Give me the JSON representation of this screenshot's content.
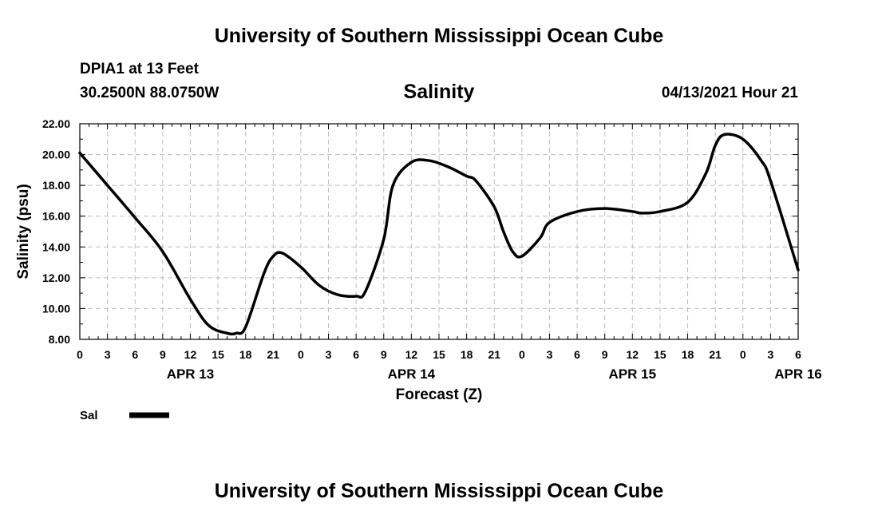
{
  "header": {
    "title": "University of Southern Mississippi Ocean Cube",
    "station": "DPIA1 at 13 Feet",
    "coords": "30.2500N  88.0750W",
    "variable": "Salinity",
    "datetime": "04/13/2021 Hour 21"
  },
  "footer": {
    "title": "University of Southern Mississippi Ocean Cube"
  },
  "chart_data": {
    "type": "line",
    "xlabel": "Forecast (Z)",
    "ylabel": "Salinity (psu)",
    "x_ticks": [
      "0",
      "3",
      "6",
      "9",
      "12",
      "15",
      "18",
      "21",
      "0",
      "3",
      "6",
      "9",
      "12",
      "15",
      "18",
      "21",
      "0",
      "3",
      "6",
      "9",
      "12",
      "15",
      "18",
      "21",
      "0",
      "3",
      "6"
    ],
    "date_labels": [
      {
        "label": "APR 13",
        "hour": 12
      },
      {
        "label": "APR 14",
        "hour": 36
      },
      {
        "label": "APR 15",
        "hour": 60
      },
      {
        "label": "APR 16",
        "hour": 78
      }
    ],
    "y_ticks": [
      "8.00",
      "10.00",
      "12.00",
      "14.00",
      "16.00",
      "18.00",
      "20.00",
      "22.00"
    ],
    "xlim": [
      0,
      78
    ],
    "ylim": [
      8,
      22
    ],
    "grid": true,
    "legend": {
      "position": "bottom-left",
      "label": "Sal"
    },
    "series": [
      {
        "name": "Sal",
        "color": "#000000",
        "x": [
          0,
          3,
          6,
          9,
          12,
          14,
          16,
          17,
          18,
          20,
          21,
          22,
          24,
          26,
          28,
          30,
          31,
          33,
          34,
          36,
          38,
          40,
          42,
          43,
          45,
          46,
          47,
          48,
          50,
          51,
          54,
          57,
          60,
          61,
          63,
          66,
          68,
          69,
          70,
          72,
          74,
          75,
          78
        ],
        "y": [
          20.1,
          18.0,
          15.9,
          13.7,
          10.6,
          8.9,
          8.4,
          8.4,
          8.8,
          12.3,
          13.4,
          13.6,
          12.7,
          11.5,
          10.9,
          10.8,
          11.1,
          14.5,
          18.0,
          19.5,
          19.6,
          19.2,
          18.6,
          18.3,
          16.6,
          15.0,
          13.7,
          13.4,
          14.6,
          15.6,
          16.3,
          16.5,
          16.3,
          16.2,
          16.3,
          16.9,
          18.8,
          20.6,
          21.3,
          21.0,
          19.6,
          18.3,
          12.5
        ]
      }
    ]
  }
}
